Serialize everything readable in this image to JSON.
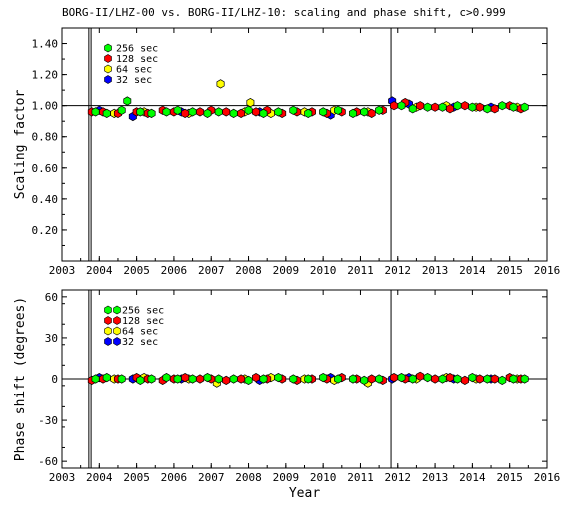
{
  "chart_data": [
    {
      "type": "scatter",
      "title": "BORG-II/LHZ-00 vs. BORG-II/LHZ-10: scaling and phase shift, c>0.999",
      "xlabel": "",
      "ylabel": "Scaling factor",
      "xlim": [
        2003,
        2016
      ],
      "ylim": [
        0.0,
        1.5
      ],
      "xticks": [
        "2003",
        "2004",
        "2005",
        "2006",
        "2007",
        "2008",
        "2009",
        "2010",
        "2011",
        "2012",
        "2013",
        "2014",
        "2015",
        "2016"
      ],
      "yticks": [
        "0.20",
        "0.40",
        "0.60",
        "0.80",
        "1.00",
        "1.20",
        "1.40"
      ],
      "reference_line": 1.0,
      "vertical_lines": [
        2003.72,
        2003.78,
        2011.82
      ],
      "legend_position": "top-left",
      "series": [
        {
          "name": "256 sec",
          "color": "#00ff00",
          "x": [
            2003.9,
            2004.2,
            2004.6,
            2004.75,
            2005.1,
            2005.4,
            2005.8,
            2006.1,
            2006.5,
            2006.9,
            2007.2,
            2007.6,
            2008.0,
            2008.4,
            2008.8,
            2009.2,
            2009.6,
            2010.0,
            2010.4,
            2010.8,
            2011.1,
            2011.5,
            2012.1,
            2012.4,
            2012.8,
            2013.2,
            2013.6,
            2014.0,
            2014.4,
            2014.8,
            2015.1,
            2015.4
          ],
          "y": [
            0.96,
            0.95,
            0.97,
            1.03,
            0.96,
            0.95,
            0.96,
            0.97,
            0.96,
            0.95,
            0.96,
            0.95,
            0.97,
            0.95,
            0.96,
            0.97,
            0.95,
            0.96,
            0.97,
            0.95,
            0.96,
            0.97,
            1.0,
            0.98,
            0.99,
            0.99,
            1.0,
            0.99,
            0.98,
            1.0,
            0.99,
            0.99
          ]
        },
        {
          "name": "128 sec",
          "color": "#ff0000",
          "x": [
            2003.8,
            2004.1,
            2004.5,
            2005.0,
            2005.3,
            2005.7,
            2006.0,
            2006.3,
            2006.7,
            2007.0,
            2007.4,
            2007.8,
            2008.2,
            2008.5,
            2008.9,
            2009.3,
            2009.7,
            2010.1,
            2010.5,
            2010.9,
            2011.3,
            2011.6,
            2011.9,
            2012.2,
            2012.6,
            2013.0,
            2013.4,
            2013.8,
            2014.2,
            2014.6,
            2015.0,
            2015.3
          ],
          "y": [
            0.96,
            0.96,
            0.95,
            0.96,
            0.95,
            0.97,
            0.96,
            0.95,
            0.96,
            0.97,
            0.96,
            0.95,
            0.96,
            0.97,
            0.95,
            0.96,
            0.96,
            0.95,
            0.96,
            0.96,
            0.95,
            0.97,
            1.0,
            1.02,
            1.0,
            0.99,
            0.98,
            1.0,
            0.99,
            0.98,
            1.0,
            0.98
          ]
        },
        {
          "name": "64 sec",
          "color": "#ffff00",
          "x": [
            2004.4,
            2005.2,
            2006.4,
            2007.25,
            2007.9,
            2008.05,
            2008.6,
            2009.5,
            2010.3,
            2011.2,
            2012.5,
            2013.3,
            2014.1,
            2015.2
          ],
          "y": [
            0.95,
            0.96,
            0.95,
            1.14,
            0.96,
            1.02,
            0.95,
            0.96,
            0.97,
            0.96,
            0.99,
            1.0,
            0.99,
            0.99
          ]
        },
        {
          "name": "32 sec",
          "color": "#0000ff",
          "x": [
            2004.0,
            2004.9,
            2006.2,
            2008.3,
            2010.2,
            2011.85,
            2012.3,
            2013.5,
            2014.5
          ],
          "y": [
            0.97,
            0.93,
            0.96,
            0.96,
            0.94,
            1.03,
            1.01,
            0.99,
            0.99
          ]
        }
      ]
    },
    {
      "type": "scatter",
      "title": "",
      "xlabel": "Year",
      "ylabel": "Phase shift (degrees)",
      "xlim": [
        2003,
        2016
      ],
      "ylim": [
        -65,
        65
      ],
      "xticks": [
        "2003",
        "2004",
        "2005",
        "2006",
        "2007",
        "2008",
        "2009",
        "2010",
        "2011",
        "2012",
        "2013",
        "2014",
        "2015",
        "2016"
      ],
      "yticks": [
        "-60",
        "-30",
        "0",
        "30",
        "60"
      ],
      "reference_line": 0,
      "vertical_lines": [
        2003.72,
        2003.78,
        2011.82
      ],
      "legend_position": "top-left",
      "series": [
        {
          "name": "256 sec",
          "color": "#00ff00",
          "x": [
            2003.9,
            2004.2,
            2004.6,
            2005.1,
            2005.4,
            2005.8,
            2006.1,
            2006.5,
            2006.9,
            2007.2,
            2007.6,
            2008.0,
            2008.4,
            2008.8,
            2009.2,
            2009.6,
            2010.0,
            2010.4,
            2010.8,
            2011.1,
            2011.5,
            2012.1,
            2012.4,
            2012.8,
            2013.2,
            2013.6,
            2014.0,
            2014.4,
            2014.8,
            2015.1,
            2015.4
          ],
          "y": [
            0,
            1,
            0,
            -1,
            0,
            1,
            0,
            0,
            1,
            0,
            0,
            -1,
            0,
            1,
            0,
            0,
            1,
            0,
            0,
            -1,
            0,
            1,
            0,
            1,
            0,
            0,
            1,
            0,
            -1,
            0,
            0
          ]
        },
        {
          "name": "128 sec",
          "color": "#ff0000",
          "x": [
            2003.8,
            2004.1,
            2004.5,
            2005.0,
            2005.3,
            2005.7,
            2006.0,
            2006.3,
            2006.7,
            2007.0,
            2007.4,
            2007.8,
            2008.2,
            2008.5,
            2008.9,
            2009.3,
            2009.7,
            2010.1,
            2010.5,
            2010.9,
            2011.3,
            2011.6,
            2011.9,
            2012.2,
            2012.6,
            2013.0,
            2013.4,
            2013.8,
            2014.2,
            2014.6,
            2015.0,
            2015.3
          ],
          "y": [
            -1,
            0,
            0,
            1,
            0,
            -1,
            0,
            1,
            0,
            0,
            -1,
            0,
            1,
            0,
            0,
            -1,
            0,
            0,
            1,
            0,
            0,
            -1,
            1,
            0,
            2,
            0,
            1,
            -1,
            0,
            0,
            1,
            0
          ]
        },
        {
          "name": "64 sec",
          "color": "#ffff00",
          "x": [
            2004.4,
            2005.2,
            2006.4,
            2007.15,
            2007.9,
            2008.6,
            2009.5,
            2010.3,
            2011.2,
            2012.5,
            2013.3,
            2014.1,
            2015.2
          ],
          "y": [
            0,
            1,
            0,
            -3,
            0,
            1,
            0,
            -1,
            -3,
            0,
            1,
            0,
            0
          ]
        },
        {
          "name": "32 sec",
          "color": "#0000ff",
          "x": [
            2004.0,
            2004.9,
            2006.2,
            2008.3,
            2010.2,
            2011.85,
            2012.3,
            2013.5,
            2014.5
          ],
          "y": [
            1,
            0,
            0,
            -1,
            1,
            0,
            1,
            0,
            0
          ]
        }
      ]
    }
  ]
}
